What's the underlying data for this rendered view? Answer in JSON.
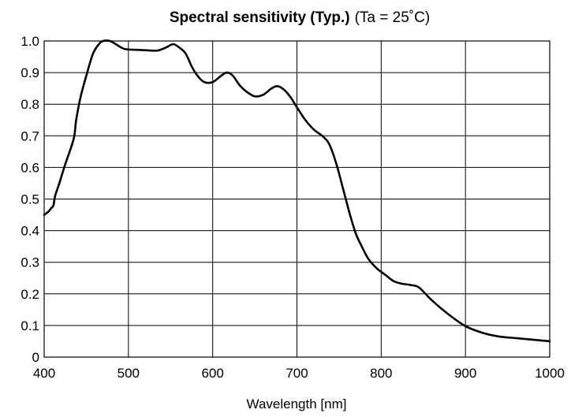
{
  "chart_data": {
    "type": "line",
    "title": "Spectral sensitivity (Typ.)",
    "subtitle": "(Ta = 25˚C)",
    "xlabel": "Wavelength [nm]",
    "ylabel": "",
    "xlim": [
      400,
      1000
    ],
    "ylim": [
      0,
      1.0
    ],
    "grid": true,
    "x_ticks": [
      "400",
      "500",
      "600",
      "700",
      "800",
      "900",
      "1000"
    ],
    "y_ticks": [
      "0",
      "0.1",
      "0.2",
      "0.3",
      "0.4",
      "0.5",
      "0.6",
      "0.7",
      "0.8",
      "0.9",
      "1.0"
    ],
    "series": [
      {
        "color": "#000000",
        "points": [
          [
            400,
            0.45
          ],
          [
            405,
            0.46
          ],
          [
            408,
            0.47
          ],
          [
            411,
            0.48
          ],
          [
            413,
            0.51
          ],
          [
            418,
            0.55
          ],
          [
            425,
            0.61
          ],
          [
            435,
            0.69
          ],
          [
            438,
            0.75
          ],
          [
            443,
            0.82
          ],
          [
            450,
            0.89
          ],
          [
            458,
            0.96
          ],
          [
            465,
            0.99
          ],
          [
            470,
            1.0
          ],
          [
            478,
            1.0
          ],
          [
            485,
            0.99
          ],
          [
            495,
            0.975
          ],
          [
            510,
            0.972
          ],
          [
            525,
            0.97
          ],
          [
            535,
            0.97
          ],
          [
            545,
            0.98
          ],
          [
            553,
            0.99
          ],
          [
            560,
            0.98
          ],
          [
            568,
            0.96
          ],
          [
            575,
            0.92
          ],
          [
            582,
            0.89
          ],
          [
            590,
            0.87
          ],
          [
            600,
            0.87
          ],
          [
            610,
            0.89
          ],
          [
            617,
            0.9
          ],
          [
            624,
            0.89
          ],
          [
            632,
            0.86
          ],
          [
            640,
            0.84
          ],
          [
            650,
            0.825
          ],
          [
            660,
            0.83
          ],
          [
            670,
            0.85
          ],
          [
            677,
            0.857
          ],
          [
            685,
            0.845
          ],
          [
            693,
            0.82
          ],
          [
            700,
            0.79
          ],
          [
            710,
            0.75
          ],
          [
            720,
            0.72
          ],
          [
            730,
            0.7
          ],
          [
            737,
            0.68
          ],
          [
            742,
            0.65
          ],
          [
            748,
            0.6
          ],
          [
            755,
            0.53
          ],
          [
            763,
            0.45
          ],
          [
            770,
            0.39
          ],
          [
            777,
            0.35
          ],
          [
            785,
            0.31
          ],
          [
            795,
            0.28
          ],
          [
            805,
            0.26
          ],
          [
            815,
            0.24
          ],
          [
            825,
            0.232
          ],
          [
            835,
            0.228
          ],
          [
            845,
            0.22
          ],
          [
            860,
            0.18
          ],
          [
            880,
            0.135
          ],
          [
            900,
            0.098
          ],
          [
            920,
            0.077
          ],
          [
            940,
            0.065
          ],
          [
            960,
            0.06
          ],
          [
            980,
            0.055
          ],
          [
            1000,
            0.05
          ]
        ]
      }
    ]
  }
}
